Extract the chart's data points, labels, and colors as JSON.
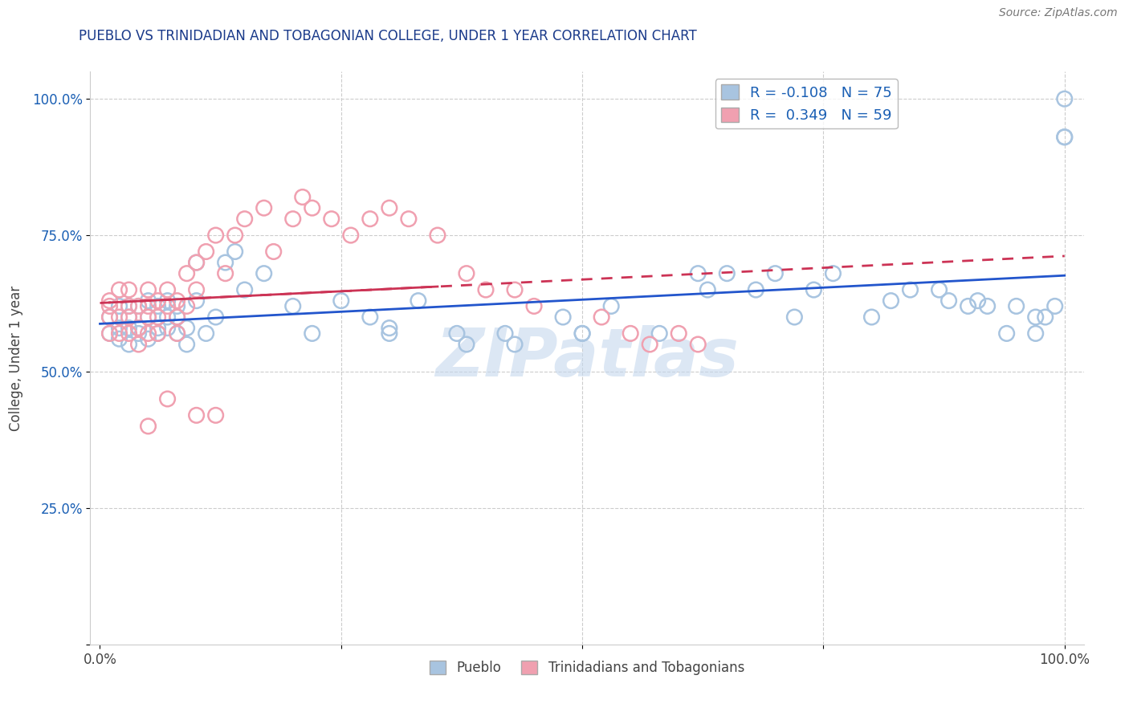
{
  "title": "PUEBLO VS TRINIDADIAN AND TOBAGONIAN COLLEGE, UNDER 1 YEAR CORRELATION CHART",
  "source_text": "Source: ZipAtlas.com",
  "ylabel": "College, Under 1 year",
  "blue_R": -0.108,
  "blue_N": 75,
  "pink_R": 0.349,
  "pink_N": 59,
  "blue_color": "#a8c4e0",
  "pink_color": "#f0a0b0",
  "blue_line_color": "#2255cc",
  "pink_line_color": "#cc3355",
  "watermark_color": "#c5d8ee",
  "title_color": "#1a3a8a",
  "legend_color": "#1a5fb4",
  "blue_x": [
    0.01,
    0.01,
    0.02,
    0.02,
    0.02,
    0.03,
    0.03,
    0.03,
    0.03,
    0.04,
    0.04,
    0.04,
    0.05,
    0.05,
    0.05,
    0.06,
    0.06,
    0.06,
    0.07,
    0.07,
    0.07,
    0.08,
    0.08,
    0.08,
    0.09,
    0.09,
    0.1,
    0.1,
    0.11,
    0.12,
    0.13,
    0.14,
    0.15,
    0.17,
    0.2,
    0.22,
    0.25,
    0.28,
    0.3,
    0.33,
    0.37,
    0.42,
    0.48,
    0.5,
    0.53,
    0.58,
    0.62,
    0.63,
    0.65,
    0.68,
    0.7,
    0.72,
    0.74,
    0.76,
    0.8,
    0.82,
    0.84,
    0.87,
    0.88,
    0.9,
    0.91,
    0.92,
    0.94,
    0.95,
    0.97,
    0.97,
    0.98,
    0.99,
    1.0,
    1.0,
    1.0,
    0.43,
    0.5,
    0.38,
    0.3
  ],
  "blue_y": [
    0.6,
    0.57,
    0.62,
    0.58,
    0.56,
    0.6,
    0.58,
    0.55,
    0.62,
    0.58,
    0.62,
    0.57,
    0.6,
    0.56,
    0.63,
    0.62,
    0.58,
    0.57,
    0.63,
    0.6,
    0.58,
    0.62,
    0.6,
    0.57,
    0.58,
    0.55,
    0.63,
    0.7,
    0.57,
    0.6,
    0.7,
    0.72,
    0.65,
    0.68,
    0.62,
    0.57,
    0.63,
    0.6,
    0.58,
    0.63,
    0.57,
    0.57,
    0.6,
    0.57,
    0.62,
    0.57,
    0.68,
    0.65,
    0.68,
    0.65,
    0.68,
    0.6,
    0.65,
    0.68,
    0.6,
    0.63,
    0.65,
    0.65,
    0.63,
    0.62,
    0.63,
    0.62,
    0.57,
    0.62,
    0.6,
    0.57,
    0.6,
    0.62,
    1.0,
    0.93,
    0.93,
    0.55,
    0.57,
    0.55,
    0.57
  ],
  "pink_x": [
    0.01,
    0.01,
    0.01,
    0.01,
    0.02,
    0.02,
    0.02,
    0.03,
    0.03,
    0.03,
    0.03,
    0.04,
    0.04,
    0.04,
    0.05,
    0.05,
    0.05,
    0.05,
    0.06,
    0.06,
    0.06,
    0.07,
    0.07,
    0.08,
    0.08,
    0.08,
    0.09,
    0.09,
    0.1,
    0.1,
    0.11,
    0.12,
    0.13,
    0.14,
    0.15,
    0.17,
    0.18,
    0.2,
    0.21,
    0.22,
    0.24,
    0.26,
    0.28,
    0.3,
    0.32,
    0.35,
    0.38,
    0.4,
    0.43,
    0.45,
    0.52,
    0.55,
    0.57,
    0.6,
    0.62,
    0.1,
    0.07,
    0.05,
    0.12
  ],
  "pink_y": [
    0.62,
    0.6,
    0.63,
    0.57,
    0.6,
    0.57,
    0.65,
    0.62,
    0.6,
    0.57,
    0.65,
    0.62,
    0.58,
    0.55,
    0.62,
    0.6,
    0.57,
    0.65,
    0.63,
    0.6,
    0.57,
    0.65,
    0.62,
    0.63,
    0.6,
    0.57,
    0.62,
    0.68,
    0.7,
    0.65,
    0.72,
    0.75,
    0.68,
    0.75,
    0.78,
    0.8,
    0.72,
    0.78,
    0.82,
    0.8,
    0.78,
    0.75,
    0.78,
    0.8,
    0.78,
    0.75,
    0.68,
    0.65,
    0.65,
    0.62,
    0.6,
    0.57,
    0.55,
    0.57,
    0.55,
    0.42,
    0.45,
    0.4,
    0.42
  ]
}
